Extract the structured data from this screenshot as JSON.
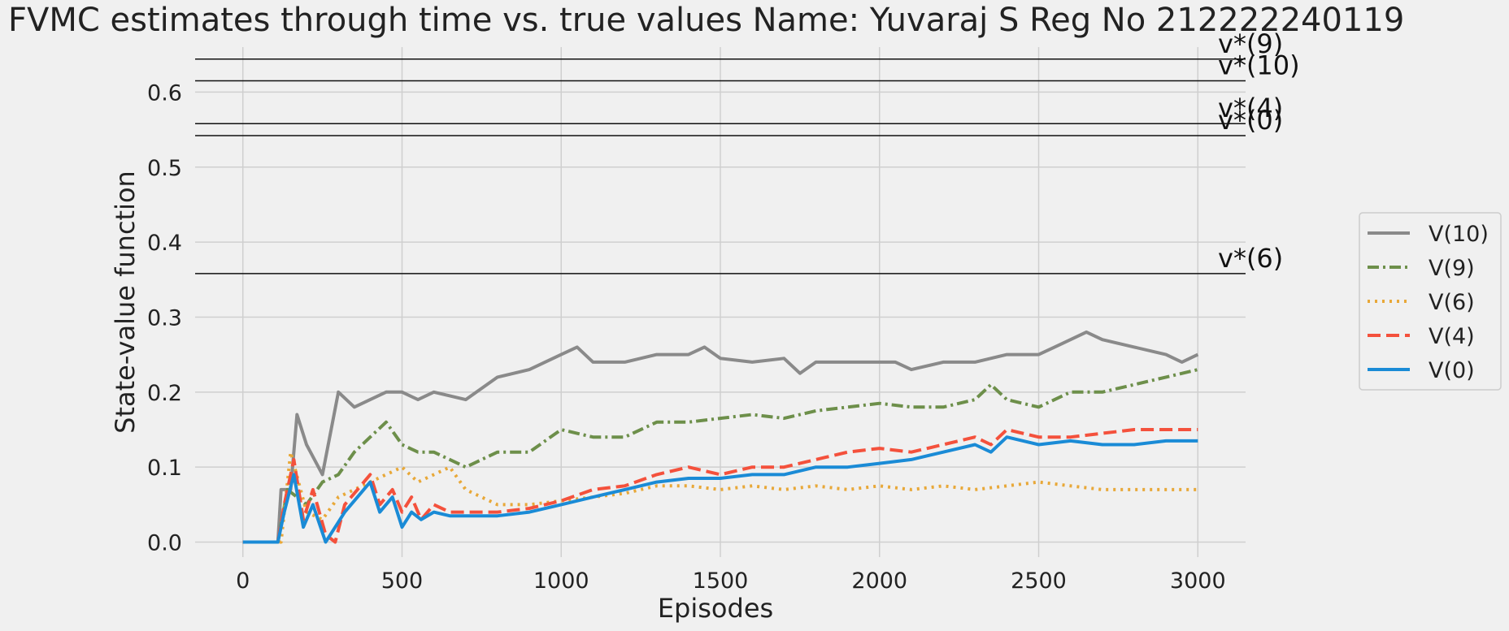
{
  "chart_data": {
    "type": "line",
    "title": "FVMC estimates through time vs. true values    Name: Yuvaraj S    Reg No 212222240119",
    "xlabel": "Episodes",
    "ylabel": "State-value function",
    "xlim": [
      -150,
      3150
    ],
    "ylim": [
      -0.02,
      0.66
    ],
    "x_ticks": [
      0,
      500,
      1000,
      1500,
      2000,
      2500,
      3000
    ],
    "y_ticks": [
      0.0,
      0.1,
      0.2,
      0.3,
      0.4,
      0.5,
      0.6
    ],
    "grid": true,
    "legend_position": "right",
    "true_values": [
      {
        "label": "v*(9)",
        "value": 0.644
      },
      {
        "label": "v*(10)",
        "value": 0.615
      },
      {
        "label": "v*(4)",
        "value": 0.558
      },
      {
        "label": "v*(0)",
        "value": 0.542
      },
      {
        "label": "v*(6)",
        "value": 0.358
      }
    ],
    "series": [
      {
        "name": "V(10)",
        "color": "#8a8a8a",
        "dash": "solid",
        "x": [
          0,
          110,
          120,
          150,
          170,
          200,
          250,
          300,
          350,
          400,
          450,
          500,
          550,
          600,
          700,
          800,
          900,
          1000,
          1050,
          1100,
          1200,
          1300,
          1400,
          1450,
          1500,
          1600,
          1700,
          1750,
          1800,
          1900,
          2000,
          2050,
          2100,
          2200,
          2300,
          2400,
          2500,
          2550,
          2600,
          2650,
          2700,
          2800,
          2900,
          2950,
          3000
        ],
        "y": [
          0,
          0,
          0.07,
          0.07,
          0.17,
          0.13,
          0.09,
          0.2,
          0.18,
          0.19,
          0.2,
          0.2,
          0.19,
          0.2,
          0.19,
          0.22,
          0.23,
          0.25,
          0.26,
          0.24,
          0.24,
          0.25,
          0.25,
          0.26,
          0.245,
          0.24,
          0.245,
          0.225,
          0.24,
          0.24,
          0.24,
          0.24,
          0.23,
          0.24,
          0.24,
          0.25,
          0.25,
          0.26,
          0.27,
          0.28,
          0.27,
          0.26,
          0.25,
          0.24,
          0.25
        ]
      },
      {
        "name": "V(9)",
        "color": "#6d8f4a",
        "dash": "dashdot",
        "x": [
          0,
          110,
          140,
          170,
          200,
          250,
          300,
          350,
          400,
          450,
          500,
          550,
          600,
          700,
          800,
          900,
          1000,
          1100,
          1200,
          1300,
          1400,
          1500,
          1600,
          1700,
          1800,
          1900,
          2000,
          2100,
          2200,
          2300,
          2350,
          2400,
          2500,
          2600,
          2700,
          2800,
          2900,
          3000
        ],
        "y": [
          0,
          0,
          0.07,
          0.06,
          0.05,
          0.08,
          0.09,
          0.12,
          0.14,
          0.16,
          0.13,
          0.12,
          0.12,
          0.1,
          0.12,
          0.12,
          0.15,
          0.14,
          0.14,
          0.16,
          0.16,
          0.165,
          0.17,
          0.165,
          0.175,
          0.18,
          0.185,
          0.18,
          0.18,
          0.19,
          0.21,
          0.19,
          0.18,
          0.2,
          0.2,
          0.21,
          0.22,
          0.23
        ]
      },
      {
        "name": "V(6)",
        "color": "#e8a838",
        "dash": "dotted",
        "x": [
          0,
          120,
          150,
          200,
          250,
          300,
          350,
          400,
          450,
          500,
          550,
          600,
          650,
          700,
          800,
          900,
          1000,
          1100,
          1200,
          1300,
          1400,
          1500,
          1600,
          1700,
          1800,
          1900,
          2000,
          2100,
          2200,
          2300,
          2400,
          2500,
          2600,
          2700,
          2800,
          2900,
          3000
        ],
        "y": [
          0,
          0,
          0.12,
          0.04,
          0.03,
          0.06,
          0.07,
          0.08,
          0.09,
          0.1,
          0.08,
          0.09,
          0.1,
          0.07,
          0.05,
          0.05,
          0.055,
          0.06,
          0.065,
          0.075,
          0.075,
          0.07,
          0.075,
          0.07,
          0.075,
          0.07,
          0.075,
          0.07,
          0.075,
          0.07,
          0.075,
          0.08,
          0.075,
          0.07,
          0.07,
          0.07,
          0.07
        ]
      },
      {
        "name": "V(4)",
        "color": "#f4513c",
        "dash": "dashed",
        "x": [
          0,
          110,
          130,
          160,
          190,
          220,
          260,
          290,
          320,
          360,
          400,
          430,
          470,
          500,
          530,
          560,
          600,
          650,
          700,
          800,
          900,
          1000,
          1100,
          1200,
          1300,
          1400,
          1500,
          1600,
          1700,
          1800,
          1900,
          2000,
          2100,
          2200,
          2300,
          2350,
          2400,
          2500,
          2600,
          2700,
          2800,
          2900,
          3000
        ],
        "y": [
          0,
          0,
          0.05,
          0.11,
          0.03,
          0.07,
          0.01,
          0.0,
          0.05,
          0.07,
          0.09,
          0.05,
          0.07,
          0.04,
          0.06,
          0.03,
          0.05,
          0.04,
          0.04,
          0.04,
          0.045,
          0.055,
          0.07,
          0.075,
          0.09,
          0.1,
          0.09,
          0.1,
          0.1,
          0.11,
          0.12,
          0.125,
          0.12,
          0.13,
          0.14,
          0.13,
          0.15,
          0.14,
          0.14,
          0.145,
          0.15,
          0.15,
          0.15
        ]
      },
      {
        "name": "V(0)",
        "color": "#1a8bd6",
        "dash": "solid",
        "x": [
          0,
          110,
          130,
          160,
          190,
          220,
          260,
          290,
          320,
          360,
          400,
          430,
          470,
          500,
          530,
          560,
          600,
          650,
          700,
          800,
          900,
          1000,
          1100,
          1200,
          1300,
          1400,
          1500,
          1600,
          1700,
          1800,
          1900,
          2000,
          2100,
          2200,
          2300,
          2350,
          2400,
          2500,
          2600,
          2700,
          2800,
          2900,
          3000
        ],
        "y": [
          0,
          0,
          0.04,
          0.09,
          0.02,
          0.05,
          0.0,
          0.02,
          0.04,
          0.06,
          0.08,
          0.04,
          0.06,
          0.02,
          0.04,
          0.03,
          0.04,
          0.035,
          0.035,
          0.035,
          0.04,
          0.05,
          0.06,
          0.07,
          0.08,
          0.085,
          0.085,
          0.09,
          0.09,
          0.1,
          0.1,
          0.105,
          0.11,
          0.12,
          0.13,
          0.12,
          0.14,
          0.13,
          0.135,
          0.13,
          0.13,
          0.135,
          0.135
        ]
      }
    ],
    "legend": [
      "V(10)",
      "V(9)",
      "V(6)",
      "V(4)",
      "V(0)"
    ]
  }
}
